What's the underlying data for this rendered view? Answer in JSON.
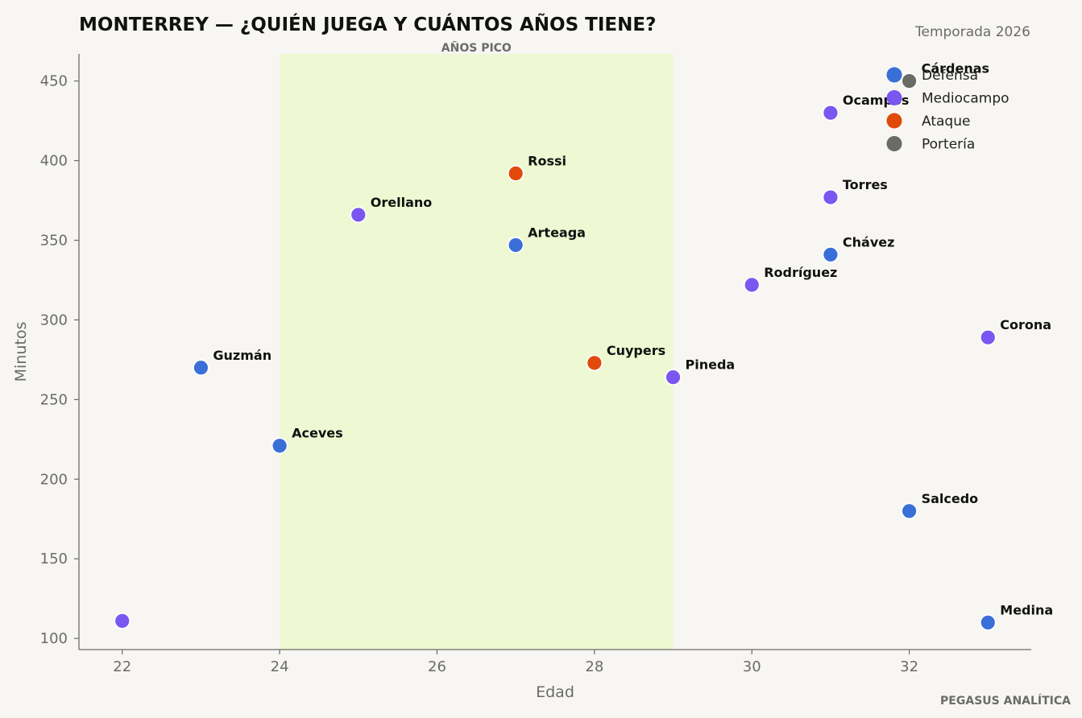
{
  "chart_data": {
    "type": "scatter",
    "title": "MONTERREY — ¿QUIÉN JUEGA Y CUÁNTOS AÑOS TIENE?",
    "subtitle": "Temporada 2026",
    "xlabel": "Edad",
    "ylabel": "Minutos",
    "xlim": [
      21.45,
      33.55
    ],
    "ylim": [
      93,
      467
    ],
    "x_ticks": [
      22,
      24,
      26,
      28,
      30,
      32
    ],
    "y_ticks": [
      100,
      150,
      200,
      250,
      300,
      350,
      400,
      450
    ],
    "grid": false,
    "legend_position": "top-right",
    "highlight_band": {
      "label": "AÑOS PICO",
      "x_range": [
        24,
        29
      ],
      "color": "#eef8d2"
    },
    "colors": {
      "Defensa": "#3a6fd8",
      "Mediocampo": "#7a57f0",
      "Ataque": "#e04a0a",
      "Portería": "#6b6b66"
    },
    "series": [
      {
        "name": "Defensa",
        "points": [
          {
            "label": "Guzmán",
            "x": 23,
            "y": 270
          },
          {
            "label": "Aceves",
            "x": 24,
            "y": 221
          },
          {
            "label": "Arteaga",
            "x": 27,
            "y": 347
          },
          {
            "label": "Chávez",
            "x": 31,
            "y": 341
          },
          {
            "label": "Salcedo",
            "x": 32,
            "y": 180
          },
          {
            "label": "Medina",
            "x": 33,
            "y": 110
          }
        ]
      },
      {
        "name": "Mediocampo",
        "points": [
          {
            "label": "",
            "x": 22,
            "y": 111
          },
          {
            "label": "Orellano",
            "x": 25,
            "y": 366
          },
          {
            "label": "Pineda",
            "x": 29,
            "y": 264
          },
          {
            "label": "Rodríguez",
            "x": 30,
            "y": 322
          },
          {
            "label": "Torres",
            "x": 31,
            "y": 377
          },
          {
            "label": "Ocampos",
            "x": 31,
            "y": 430
          },
          {
            "label": "Corona",
            "x": 33,
            "y": 289
          }
        ]
      },
      {
        "name": "Ataque",
        "points": [
          {
            "label": "Rossi",
            "x": 27,
            "y": 392
          },
          {
            "label": "Cuypers",
            "x": 28,
            "y": 273
          }
        ]
      },
      {
        "name": "Portería",
        "points": [
          {
            "label": "Cárdenas",
            "x": 32,
            "y": 450
          }
        ]
      }
    ],
    "legend": [
      "Defensa",
      "Mediocampo",
      "Ataque",
      "Portería"
    ]
  },
  "footer": {
    "credit": "PEGASUS ANALÍTICA"
  }
}
